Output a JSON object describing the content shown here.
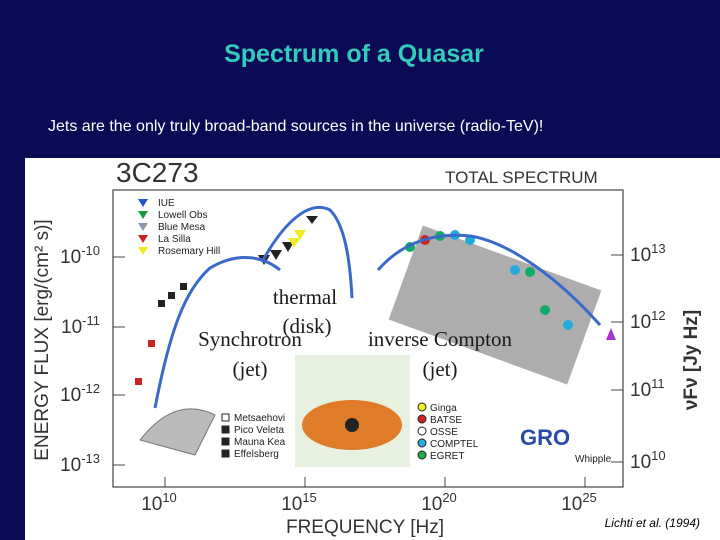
{
  "slide": {
    "title": "Spectrum of a Quasar",
    "subtitle": "Jets are the only truly broad-band sources in the universe (radio-TeV)!"
  },
  "figure": {
    "source": "3C273",
    "panel": "TOTAL SPECTRUM",
    "y_title": "ENERGY FLUX [erg/(cm² s)]",
    "y2_title": "νFν [Jy Hz]",
    "x_title": "FREQUENCY [Hz]",
    "y_ticks": [
      {
        "base": "10",
        "exp": "-10"
      },
      {
        "base": "10",
        "exp": "-11"
      },
      {
        "base": "10",
        "exp": "-12"
      },
      {
        "base": "10",
        "exp": "-13"
      }
    ],
    "y2_ticks": [
      {
        "base": "10",
        "exp": "13"
      },
      {
        "base": "10",
        "exp": "12"
      },
      {
        "base": "10",
        "exp": "11"
      },
      {
        "base": "10",
        "exp": "10"
      }
    ],
    "x_ticks": [
      {
        "base": "10",
        "exp": "10"
      },
      {
        "base": "10",
        "exp": "15"
      },
      {
        "base": "10",
        "exp": "20"
      },
      {
        "base": "10",
        "exp": "25"
      }
    ],
    "legend_optical": [
      "IUE",
      "Lowell Obs",
      "Blue Mesa",
      "La Silla",
      "Rosemary Hill"
    ],
    "legend_radio": [
      "Metsaehovi",
      "Pico Veleta",
      "Mauna Kea",
      "Effelsberg"
    ],
    "legend_gamma": [
      "Ginga",
      "BATSE",
      "OSSE",
      "COMPTEL",
      "EGRET"
    ],
    "observatory": "GRO",
    "whipple": "Whipple",
    "citation": "Lichti et al. (1994)",
    "annotations": {
      "thermal": "thermal",
      "disk": "(disk)",
      "synchrotron": "Synchrotron",
      "synchrotron_jet": "(jet)",
      "compton": "inverse Compton",
      "compton_jet": "(jet)"
    }
  }
}
